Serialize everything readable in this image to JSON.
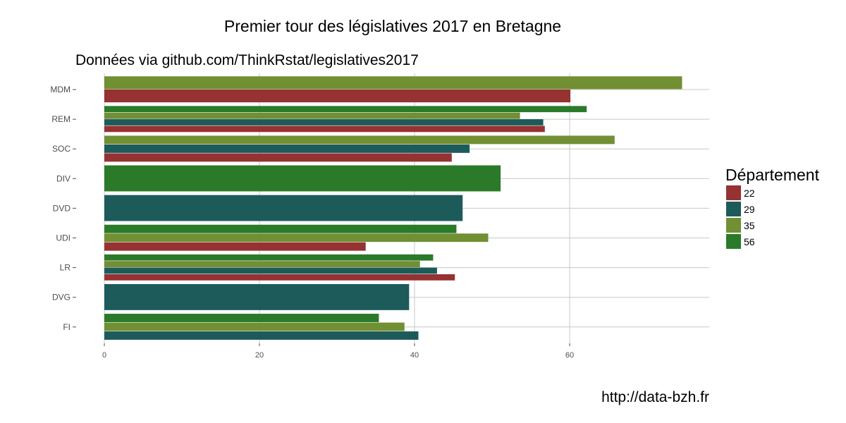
{
  "chart_data": {
    "type": "bar",
    "orientation": "horizontal",
    "title": "Premier tour des législatives 2017 en Bretagne",
    "subtitle": "Données via github.com/ThinkRstat/legislatives2017",
    "caption": "http://data-bzh.fr",
    "categories": [
      "MDM",
      "REM",
      "SOC",
      "DIV",
      "DVD",
      "UDI",
      "LR",
      "DVG",
      "FI"
    ],
    "x_ticks": [
      "0",
      "20",
      "40",
      "60"
    ],
    "xlim": [
      0,
      78
    ],
    "grid": true,
    "legend": {
      "title": "Département",
      "placement": "right",
      "entries": [
        {
          "label": "22",
          "color": "#963232"
        },
        {
          "label": "29",
          "color": "#1d5b5b"
        },
        {
          "label": "35",
          "color": "#718f33"
        },
        {
          "label": "56",
          "color": "#2a7a2a"
        }
      ]
    },
    "groups": [
      {
        "category": "MDM",
        "bars": [
          {
            "series": "35",
            "value": 74.5
          },
          {
            "series": "22",
            "value": 60.1
          }
        ]
      },
      {
        "category": "REM",
        "bars": [
          {
            "series": "56",
            "value": 62.2
          },
          {
            "series": "35",
            "value": 53.6
          },
          {
            "series": "29",
            "value": 56.6
          },
          {
            "series": "22",
            "value": 56.8
          }
        ]
      },
      {
        "category": "SOC",
        "bars": [
          {
            "series": "35",
            "value": 65.8
          },
          {
            "series": "29",
            "value": 47.1
          },
          {
            "series": "22",
            "value": 44.8
          }
        ]
      },
      {
        "category": "DIV",
        "bars": [
          {
            "series": "56",
            "value": 51.1
          }
        ]
      },
      {
        "category": "DVD",
        "bars": [
          {
            "series": "29",
            "value": 46.2
          }
        ]
      },
      {
        "category": "UDI",
        "bars": [
          {
            "series": "56",
            "value": 45.4
          },
          {
            "series": "35",
            "value": 49.5
          },
          {
            "series": "22",
            "value": 33.7
          }
        ]
      },
      {
        "category": "LR",
        "bars": [
          {
            "series": "56",
            "value": 42.4
          },
          {
            "series": "35",
            "value": 40.7
          },
          {
            "series": "29",
            "value": 42.9
          },
          {
            "series": "22",
            "value": 45.2
          }
        ]
      },
      {
        "category": "DVG",
        "bars": [
          {
            "series": "29",
            "value": 39.3
          }
        ]
      },
      {
        "category": "FI",
        "bars": [
          {
            "series": "56",
            "value": 35.4
          },
          {
            "series": "35",
            "value": 38.7
          },
          {
            "series": "29",
            "value": 40.5
          }
        ]
      }
    ]
  }
}
